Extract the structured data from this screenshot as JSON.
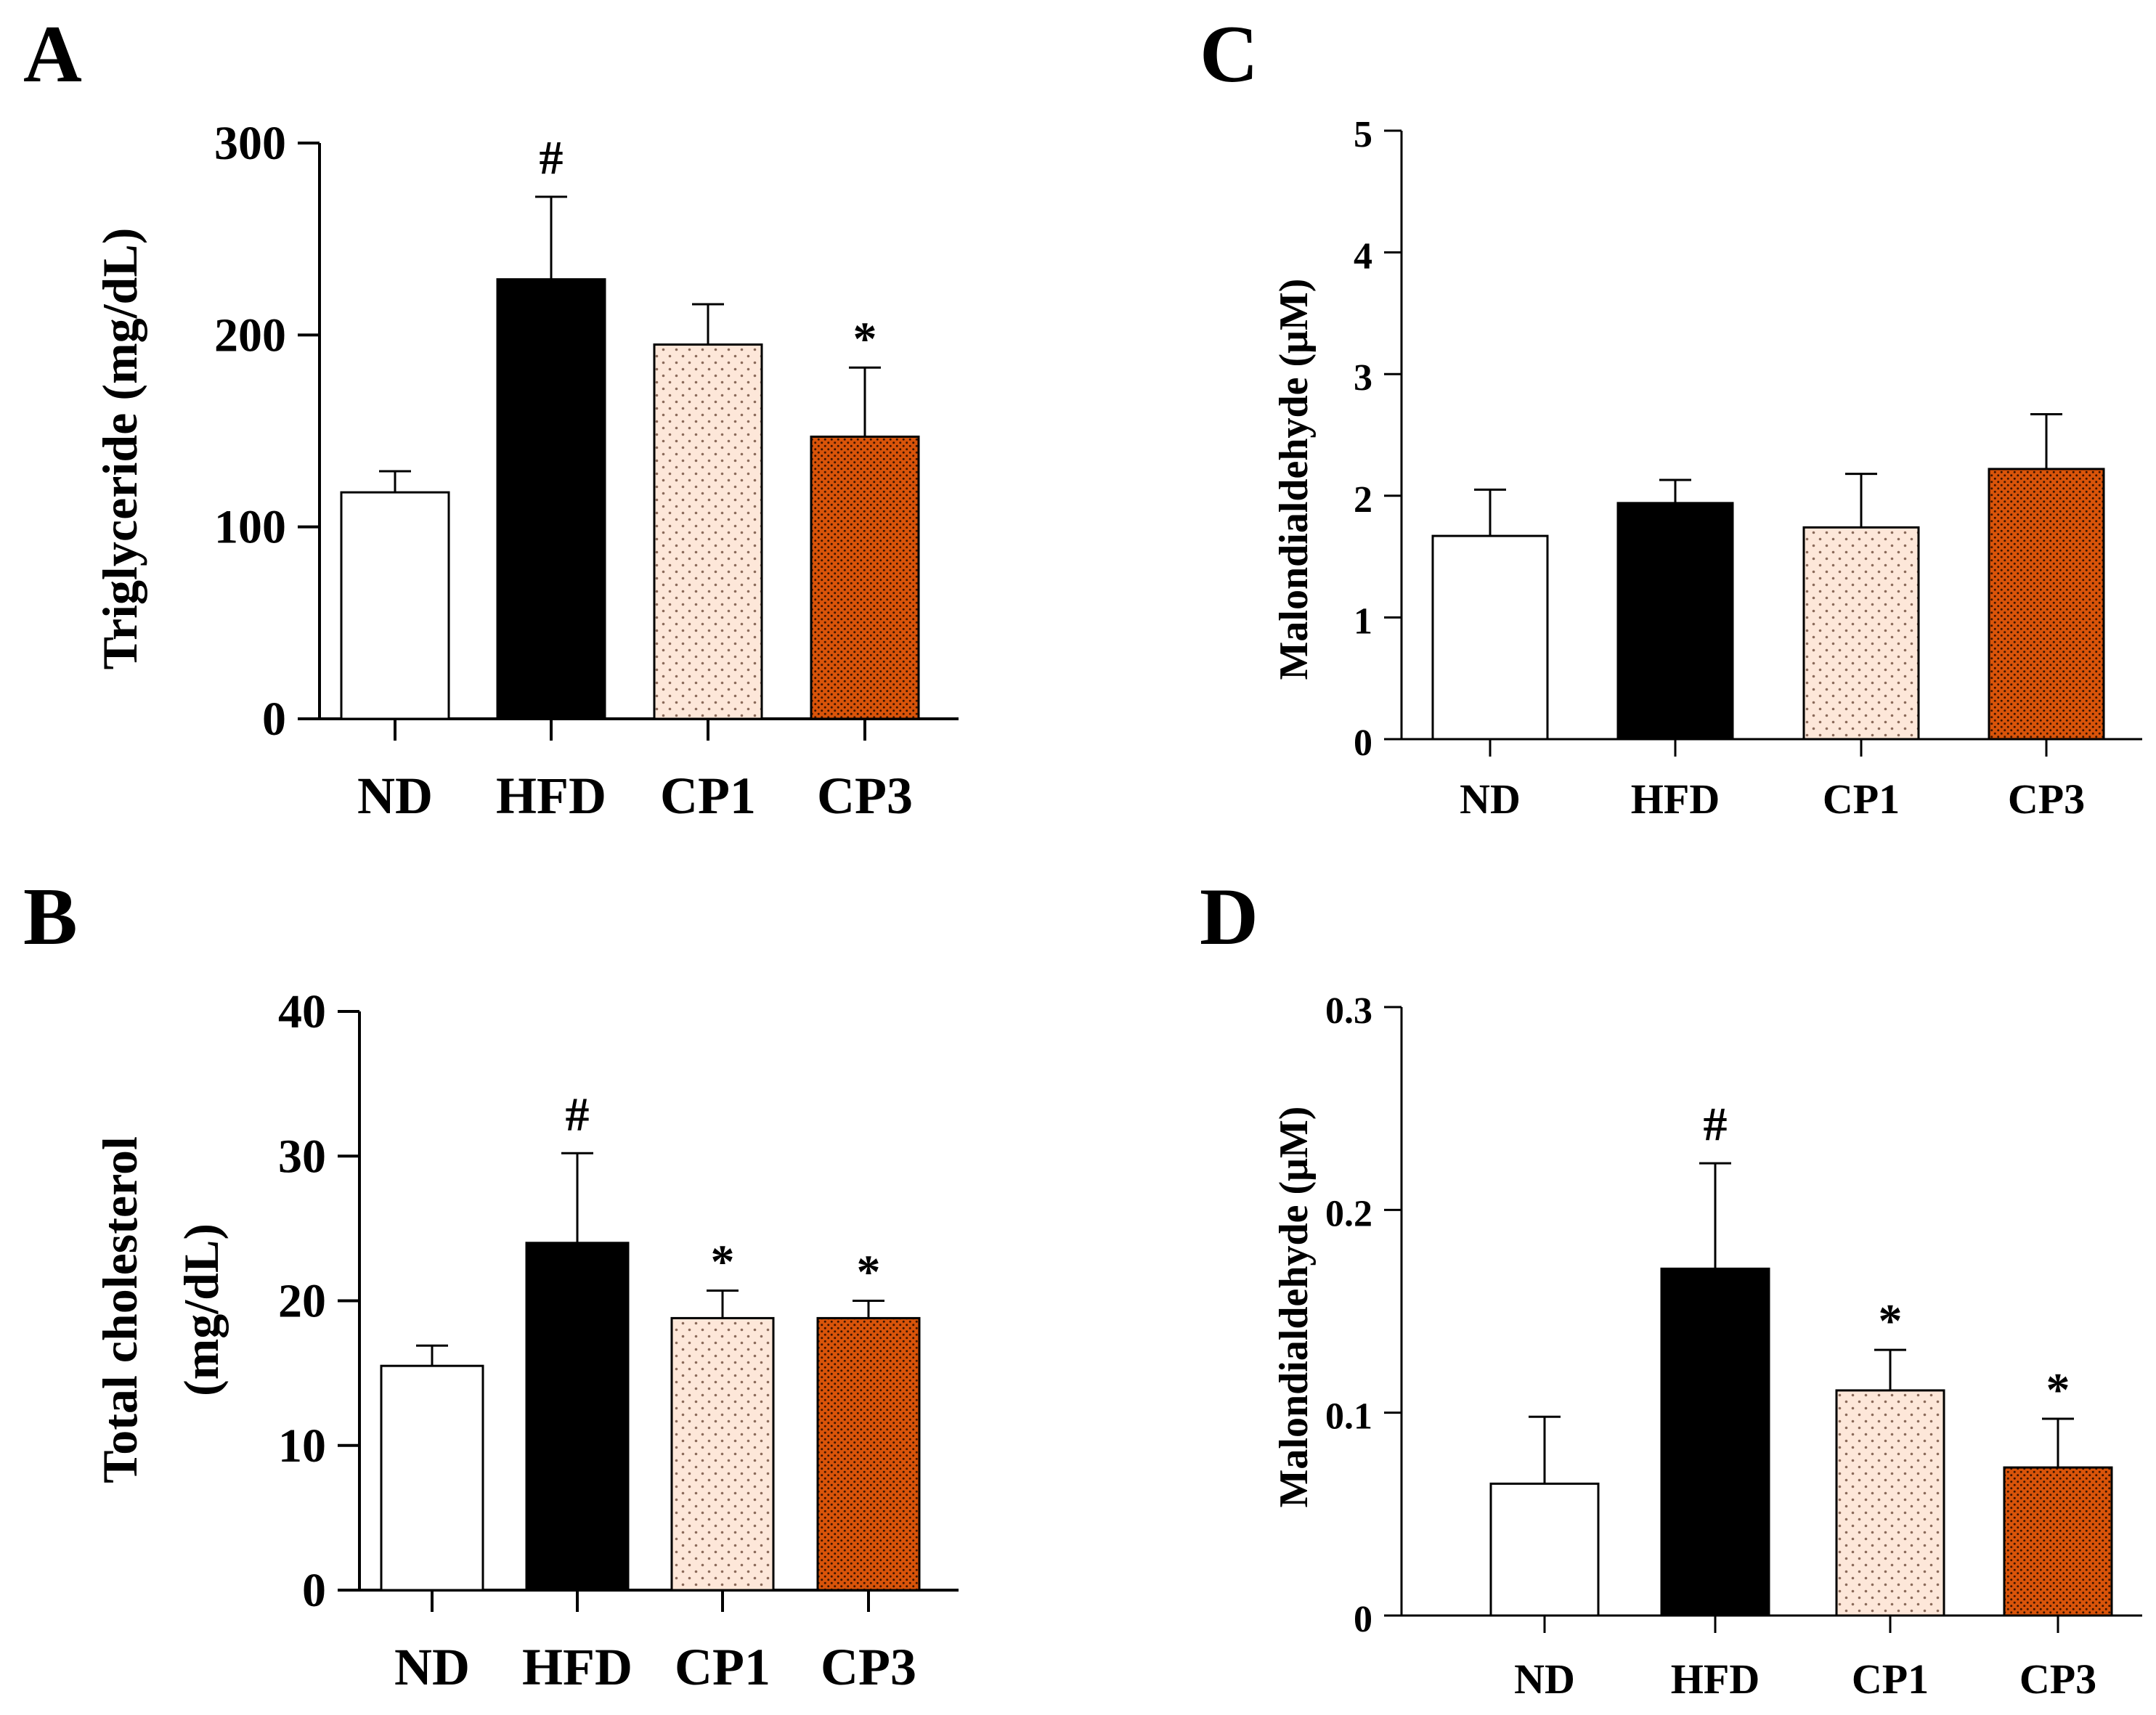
{
  "colors": {
    "nd": "#ffffff",
    "hfd": "#000000",
    "cp1_bg": "#fde7d9",
    "cp1_dot": "#8a6a5a",
    "cp3_bg": "#d9540a",
    "cp3_dot": "#3a1400",
    "axis": "#000000"
  },
  "chart_data": [
    {
      "panel": "A",
      "type": "bar",
      "title": "",
      "xlabel": "",
      "ylabel": "Triglyceride (mg/dL)",
      "ylim": [
        0,
        300
      ],
      "yticks": [
        0,
        100,
        200,
        300
      ],
      "categories": [
        "ND",
        "HFD",
        "CP1",
        "CP3"
      ],
      "values": [
        118,
        229,
        195,
        147
      ],
      "errors": [
        11,
        43,
        21,
        36
      ],
      "significance": [
        "",
        "#",
        "",
        "*"
      ]
    },
    {
      "panel": "B",
      "type": "bar",
      "title": "",
      "xlabel": "",
      "ylabel": [
        "Total cholesterol",
        "(mg/dL)"
      ],
      "ylim": [
        0,
        40
      ],
      "yticks": [
        0,
        10,
        20,
        30,
        40
      ],
      "categories": [
        "ND",
        "HFD",
        "CP1",
        "CP3"
      ],
      "values": [
        15.5,
        24.0,
        18.8,
        18.8
      ],
      "errors": [
        1.4,
        6.2,
        1.9,
        1.2
      ],
      "significance": [
        "",
        "#",
        "*",
        "*"
      ]
    },
    {
      "panel": "C",
      "type": "bar",
      "title": "",
      "xlabel": "",
      "ylabel": "Malondialdehyde (μM)",
      "ylim": [
        0,
        5
      ],
      "yticks": [
        0,
        1,
        2,
        3,
        4,
        5
      ],
      "categories": [
        "ND",
        "HFD",
        "CP1",
        "CP3"
      ],
      "values": [
        1.67,
        1.94,
        1.74,
        2.22
      ],
      "errors": [
        0.38,
        0.19,
        0.44,
        0.45
      ],
      "significance": [
        "",
        "",
        "",
        ""
      ]
    },
    {
      "panel": "D",
      "type": "bar",
      "title": "",
      "xlabel": "",
      "ylabel": "Malondialdehyde (μM)",
      "ylim": [
        0,
        0.3
      ],
      "yticks": [
        0,
        0.1,
        0.2,
        0.3
      ],
      "categories": [
        "ND",
        "HFD",
        "CP1",
        "CP3"
      ],
      "values": [
        0.065,
        0.171,
        0.111,
        0.073
      ],
      "errors": [
        0.033,
        0.052,
        0.02,
        0.024
      ],
      "significance": [
        "",
        "#",
        "*",
        "*"
      ]
    }
  ]
}
